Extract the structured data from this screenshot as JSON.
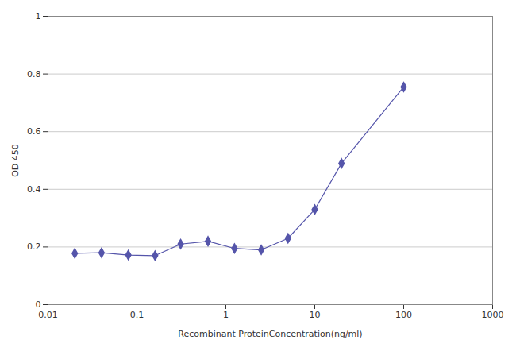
{
  "chart_data": {
    "type": "line",
    "x": [
      0.02,
      0.04,
      0.08,
      0.16,
      0.31,
      0.63,
      1.25,
      2.5,
      5,
      10,
      20,
      100
    ],
    "values": [
      0.178,
      0.18,
      0.172,
      0.17,
      0.21,
      0.22,
      0.195,
      0.19,
      0.23,
      0.33,
      0.49,
      0.755
    ],
    "color": "#5555aa",
    "marker": "diamond",
    "xlabel": "Recombinant ProteinConcentration(ng/ml)",
    "ylabel": "OD 450",
    "xlim": [
      0.01,
      1000
    ],
    "ylim": [
      0,
      1
    ],
    "xticks": [
      0.01,
      0.1,
      1,
      10,
      100,
      1000
    ],
    "yticks": [
      0,
      0.2,
      0.4,
      0.6,
      0.8,
      1
    ],
    "log": "x",
    "grid": "y"
  }
}
